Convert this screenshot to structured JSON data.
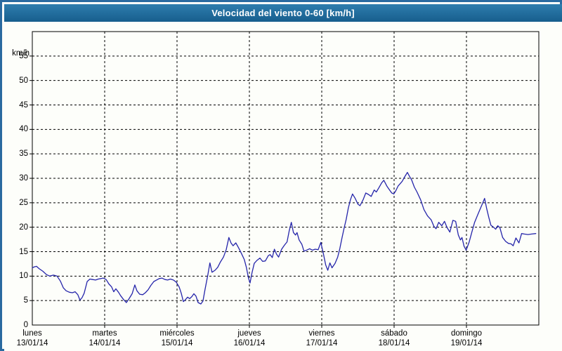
{
  "window": {
    "title": "Velocidad del viento 0-60 [km/h]"
  },
  "colors": {
    "frame_border": "#2a6aa0",
    "titlebar_top": "#2e7dae",
    "titlebar_bottom": "#175e8d",
    "title_text": "#ffffff",
    "background": "#fdfefa",
    "line": "#2525aa",
    "grid": "#000000"
  },
  "chart_data": {
    "type": "line",
    "title": "Velocidad del viento 0-60 [km/h]",
    "ylabel": "km/h",
    "ylim": [
      0,
      60
    ],
    "y_tick_step": 5,
    "y_tick_labels": [
      "0",
      "5",
      "10",
      "15",
      "20",
      "25",
      "30",
      "35",
      "40",
      "45",
      "50",
      "55"
    ],
    "x_hours_total": 168,
    "grid": "dashed",
    "legend": "none",
    "x_days": [
      {
        "name": "lunes",
        "date": "13/01/14"
      },
      {
        "name": "martes",
        "date": "14/01/14"
      },
      {
        "name": "miércoles",
        "date": "15/01/14"
      },
      {
        "name": "jueves",
        "date": "16/01/14"
      },
      {
        "name": "viernes",
        "date": "17/01/14"
      },
      {
        "name": "sábado",
        "date": "18/01/14"
      },
      {
        "name": "domingo",
        "date": "19/01/14"
      }
    ],
    "series": [
      {
        "name": "velocidad del viento",
        "units": "km/h",
        "points": [
          [
            0,
            11.7
          ],
          [
            0.7,
            11.9
          ],
          [
            1.4,
            12
          ],
          [
            2.3,
            11.5
          ],
          [
            3.5,
            11
          ],
          [
            4.7,
            10.3
          ],
          [
            5.8,
            10
          ],
          [
            7,
            10.2
          ],
          [
            8.2,
            10
          ],
          [
            9.3,
            9
          ],
          [
            10.3,
            7.6
          ],
          [
            11.2,
            7
          ],
          [
            12.3,
            6.7
          ],
          [
            13.3,
            6.6
          ],
          [
            14.2,
            6.8
          ],
          [
            15.1,
            6.2
          ],
          [
            15.8,
            5.1
          ],
          [
            16.5,
            5.6
          ],
          [
            17.2,
            6.5
          ],
          [
            18.2,
            8.9
          ],
          [
            19.1,
            9.4
          ],
          [
            20,
            9.3
          ],
          [
            21,
            9.2
          ],
          [
            21.9,
            9.4
          ],
          [
            22.8,
            9.5
          ],
          [
            23.5,
            9.6
          ],
          [
            24.5,
            9.3
          ],
          [
            25.4,
            8.4
          ],
          [
            26.3,
            7.8
          ],
          [
            27,
            6.8
          ],
          [
            27.7,
            7.4
          ],
          [
            28.6,
            6.7
          ],
          [
            29.3,
            6
          ],
          [
            30.3,
            5.2
          ],
          [
            31.2,
            4.6
          ],
          [
            32.1,
            5.4
          ],
          [
            33.1,
            6.4
          ],
          [
            34,
            8.2
          ],
          [
            34.7,
            7
          ],
          [
            35.6,
            6.3
          ],
          [
            36.6,
            6.2
          ],
          [
            37.5,
            6.6
          ],
          [
            38.4,
            7.2
          ],
          [
            39.3,
            8.1
          ],
          [
            40.3,
            8.9
          ],
          [
            41.2,
            9.2
          ],
          [
            42.1,
            9.5
          ],
          [
            43,
            9.6
          ],
          [
            44,
            9.3
          ],
          [
            44.9,
            9.2
          ],
          [
            45.8,
            9.4
          ],
          [
            46.8,
            9.2
          ],
          [
            47.7,
            8.8
          ],
          [
            48.7,
            7.8
          ],
          [
            49.4,
            6.5
          ],
          [
            50.1,
            4.8
          ],
          [
            50.8,
            5.2
          ],
          [
            51.5,
            5.7
          ],
          [
            52.2,
            5.4
          ],
          [
            52.9,
            5.8
          ],
          [
            53.6,
            6.4
          ],
          [
            54.3,
            5.9
          ],
          [
            55,
            4.6
          ],
          [
            55.9,
            4.3
          ],
          [
            56.6,
            4.9
          ],
          [
            57.3,
            7.3
          ],
          [
            58.2,
            10.2
          ],
          [
            58.9,
            12.7
          ],
          [
            59.6,
            10.8
          ],
          [
            60.6,
            11.2
          ],
          [
            61.5,
            11.8
          ],
          [
            62.4,
            12.9
          ],
          [
            63.4,
            13.9
          ],
          [
            64.3,
            15.4
          ],
          [
            65.2,
            17.9
          ],
          [
            65.9,
            16.8
          ],
          [
            66.6,
            16.2
          ],
          [
            67.5,
            16.8
          ],
          [
            68.4,
            15.8
          ],
          [
            69.4,
            14.6
          ],
          [
            70.3,
            13.4
          ],
          [
            71,
            11.8
          ],
          [
            71.7,
            9.6
          ],
          [
            72.2,
            8.6
          ],
          [
            72.9,
            10.8
          ],
          [
            73.6,
            12.6
          ],
          [
            74.5,
            13.2
          ],
          [
            75.5,
            13.7
          ],
          [
            76.4,
            13
          ],
          [
            77.3,
            13.1
          ],
          [
            78.3,
            14.2
          ],
          [
            78.9,
            14.4
          ],
          [
            79.6,
            13.8
          ],
          [
            80.3,
            15.5
          ],
          [
            81,
            14.5
          ],
          [
            81.7,
            13.9
          ],
          [
            82.7,
            15.5
          ],
          [
            83.6,
            16.3
          ],
          [
            84.5,
            17
          ],
          [
            85.2,
            19.2
          ],
          [
            85.9,
            21
          ],
          [
            86.6,
            18.9
          ],
          [
            87.3,
            18.4
          ],
          [
            87.8,
            18.9
          ],
          [
            88.5,
            17.4
          ],
          [
            89.4,
            16.5
          ],
          [
            90.1,
            15.1
          ],
          [
            91,
            15.3
          ],
          [
            92,
            15.6
          ],
          [
            92.9,
            15.3
          ],
          [
            93.8,
            15.5
          ],
          [
            94.8,
            15.4
          ],
          [
            95.7,
            16.9
          ],
          [
            96.6,
            14.4
          ],
          [
            97.3,
            12.3
          ],
          [
            98,
            11.2
          ],
          [
            98.7,
            12.7
          ],
          [
            99.4,
            11.7
          ],
          [
            100.4,
            12.6
          ],
          [
            101.3,
            13.9
          ],
          [
            102,
            15.6
          ],
          [
            102.7,
            17.8
          ],
          [
            103.4,
            19.8
          ],
          [
            104.1,
            21.6
          ],
          [
            104.8,
            23.9
          ],
          [
            105.5,
            25.6
          ],
          [
            106.2,
            26.8
          ],
          [
            107.1,
            25.9
          ],
          [
            108,
            24.7
          ],
          [
            108.7,
            24.4
          ],
          [
            109.7,
            25.6
          ],
          [
            110.6,
            27
          ],
          [
            111.5,
            26.7
          ],
          [
            112.4,
            26.3
          ],
          [
            113.4,
            27.6
          ],
          [
            114.1,
            27.2
          ],
          [
            115,
            28.1
          ],
          [
            115.9,
            29.1
          ],
          [
            116.6,
            29.6
          ],
          [
            117.6,
            28.4
          ],
          [
            118.5,
            27.6
          ],
          [
            119.2,
            27
          ],
          [
            119.9,
            26.8
          ],
          [
            120.6,
            27.5
          ],
          [
            121.3,
            28.4
          ],
          [
            122,
            28.9
          ],
          [
            122.7,
            29.4
          ],
          [
            123.4,
            30.2
          ],
          [
            124.4,
            31.2
          ],
          [
            125.1,
            30.4
          ],
          [
            125.8,
            29.7
          ],
          [
            126.7,
            28.2
          ],
          [
            127.6,
            27.2
          ],
          [
            128.8,
            25.6
          ],
          [
            129.9,
            23.6
          ],
          [
            131.1,
            22.3
          ],
          [
            132.3,
            21.5
          ],
          [
            133.2,
            20.2
          ],
          [
            133.9,
            19.7
          ],
          [
            134.8,
            21
          ],
          [
            135.8,
            20.3
          ],
          [
            136.7,
            21.2
          ],
          [
            137.6,
            19.9
          ],
          [
            138.5,
            19
          ],
          [
            139.5,
            21.4
          ],
          [
            140.4,
            21.2
          ],
          [
            141.3,
            18.4
          ],
          [
            142,
            17.4
          ],
          [
            142.5,
            17.9
          ],
          [
            143.2,
            16.1
          ],
          [
            143.9,
            15.3
          ],
          [
            144.9,
            17
          ],
          [
            145.8,
            19
          ],
          [
            146.7,
            21
          ],
          [
            147.7,
            22.5
          ],
          [
            148.6,
            23.8
          ],
          [
            149.3,
            24.8
          ],
          [
            150,
            25.9
          ],
          [
            150.7,
            23.8
          ],
          [
            151.4,
            22
          ],
          [
            152.1,
            20.4
          ],
          [
            153,
            20
          ],
          [
            153.7,
            19.6
          ],
          [
            154.4,
            20.3
          ],
          [
            155.1,
            19.9
          ],
          [
            156,
            17.9
          ],
          [
            157,
            17.1
          ],
          [
            157.9,
            16.7
          ],
          [
            158.8,
            16.6
          ],
          [
            159.5,
            16.2
          ],
          [
            160.4,
            17.8
          ],
          [
            161.4,
            16.8
          ],
          [
            162.3,
            18.7
          ],
          [
            163.2,
            18.6
          ],
          [
            164.4,
            18.5
          ],
          [
            165.6,
            18.6
          ],
          [
            167,
            18.7
          ]
        ]
      }
    ]
  }
}
